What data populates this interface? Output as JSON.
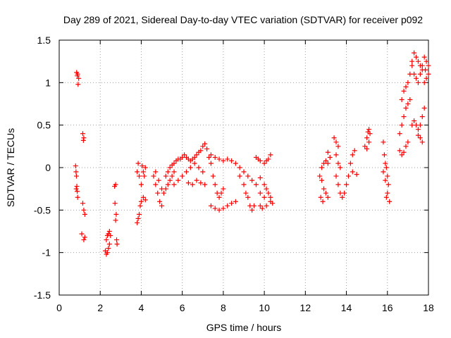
{
  "chart_data": {
    "type": "scatter",
    "title": "Day 289 of 2021, Sidereal Day-to-day VTEC variation (SDTVAR) for receiver p092",
    "xlabel": "GPS time / hours",
    "ylabel": "SDTVAR / TECUs",
    "xlim": [
      0,
      18
    ],
    "ylim": [
      -1.5,
      1.5
    ],
    "x_ticks": [
      0,
      2,
      4,
      6,
      8,
      10,
      12,
      14,
      16,
      18
    ],
    "x_tick_labels": [
      "0",
      "2",
      "4",
      "6",
      "8",
      "10",
      "12",
      "14",
      "16",
      "18"
    ],
    "y_ticks": [
      -1.5,
      -1,
      -0.5,
      0,
      0.5,
      1,
      1.5
    ],
    "y_tick_labels": [
      "-1.5",
      "-1",
      "-0.5",
      "0",
      "0.5",
      "1",
      "1.5"
    ],
    "grid": true,
    "marker": "+",
    "color": "#ff0000",
    "series": [
      {
        "name": "SDTVAR",
        "points": [
          [
            0.85,
            1.12
          ],
          [
            0.9,
            1.1
          ],
          [
            0.95,
            1.05
          ],
          [
            0.88,
            1.08
          ],
          [
            0.92,
            0.98
          ],
          [
            0.8,
            0.02
          ],
          [
            0.82,
            -0.05
          ],
          [
            0.84,
            -0.1
          ],
          [
            0.86,
            -0.22
          ],
          [
            0.88,
            -0.28
          ],
          [
            0.9,
            -0.35
          ],
          [
            0.83,
            -0.25
          ],
          [
            1.15,
            0.4
          ],
          [
            1.2,
            0.35
          ],
          [
            1.18,
            0.32
          ],
          [
            1.15,
            -0.42
          ],
          [
            1.2,
            -0.5
          ],
          [
            1.25,
            -0.55
          ],
          [
            1.1,
            -0.78
          ],
          [
            1.2,
            -0.85
          ],
          [
            1.25,
            -0.82
          ],
          [
            2.25,
            -0.98
          ],
          [
            2.3,
            -1.02
          ],
          [
            2.35,
            -1.0
          ],
          [
            2.4,
            -0.95
          ],
          [
            2.45,
            -0.9
          ],
          [
            2.3,
            -0.85
          ],
          [
            2.35,
            -0.8
          ],
          [
            2.4,
            -0.78
          ],
          [
            2.45,
            -0.75
          ],
          [
            2.5,
            -0.8
          ],
          [
            2.7,
            -0.22
          ],
          [
            2.75,
            -0.2
          ],
          [
            2.72,
            -0.42
          ],
          [
            2.78,
            -0.55
          ],
          [
            2.75,
            -0.62
          ],
          [
            2.8,
            -0.85
          ],
          [
            2.82,
            -0.9
          ],
          [
            3.8,
            -0.65
          ],
          [
            3.85,
            -0.6
          ],
          [
            3.9,
            -0.55
          ],
          [
            3.95,
            -0.45
          ],
          [
            4.0,
            -0.4
          ],
          [
            4.1,
            -0.35
          ],
          [
            4.2,
            -0.38
          ],
          [
            3.8,
            -0.05
          ],
          [
            3.9,
            -0.1
          ],
          [
            4.0,
            -0.2
          ],
          [
            4.1,
            -0.05
          ],
          [
            4.2,
            0.0
          ],
          [
            3.85,
            0.05
          ],
          [
            4.05,
            0.02
          ],
          [
            4.15,
            -0.1
          ],
          [
            4.6,
            -0.1
          ],
          [
            4.7,
            -0.2
          ],
          [
            4.8,
            -0.3
          ],
          [
            4.9,
            -0.4
          ],
          [
            5.0,
            -0.45
          ],
          [
            4.7,
            -0.05
          ],
          [
            4.85,
            -0.15
          ],
          [
            5.0,
            -0.25
          ],
          [
            5.1,
            -0.3
          ],
          [
            5.2,
            -0.25
          ],
          [
            5.3,
            -0.2
          ],
          [
            5.4,
            -0.15
          ],
          [
            5.5,
            -0.1
          ],
          [
            5.6,
            -0.05
          ],
          [
            5.2,
            -0.1
          ],
          [
            5.3,
            -0.05
          ],
          [
            5.4,
            0.0
          ],
          [
            5.5,
            0.03
          ],
          [
            5.6,
            0.05
          ],
          [
            5.7,
            0.08
          ],
          [
            5.8,
            0.1
          ],
          [
            5.9,
            0.1
          ],
          [
            6.0,
            0.12
          ],
          [
            6.1,
            0.15
          ],
          [
            6.2,
            0.12
          ],
          [
            6.3,
            0.1
          ],
          [
            6.4,
            0.08
          ],
          [
            6.5,
            0.1
          ],
          [
            6.6,
            0.12
          ],
          [
            6.7,
            0.15
          ],
          [
            6.8,
            0.18
          ],
          [
            6.9,
            0.2
          ],
          [
            7.0,
            0.25
          ],
          [
            7.1,
            0.28
          ],
          [
            7.2,
            0.22
          ],
          [
            7.3,
            0.12
          ],
          [
            7.4,
            0.05
          ],
          [
            5.6,
            -0.2
          ],
          [
            5.8,
            -0.15
          ],
          [
            6.0,
            -0.1
          ],
          [
            6.2,
            -0.05
          ],
          [
            6.4,
            0.0
          ],
          [
            6.6,
            0.05
          ],
          [
            6.8,
            0.0
          ],
          [
            7.0,
            -0.05
          ],
          [
            6.3,
            -0.18
          ],
          [
            6.5,
            -0.2
          ],
          [
            6.7,
            -0.15
          ],
          [
            6.9,
            -0.18
          ],
          [
            7.1,
            -0.2
          ],
          [
            7.5,
            -0.1
          ],
          [
            7.6,
            -0.2
          ],
          [
            7.7,
            -0.3
          ],
          [
            7.8,
            -0.35
          ],
          [
            7.9,
            -0.3
          ],
          [
            8.0,
            -0.25
          ],
          [
            7.4,
            0.15
          ],
          [
            7.6,
            0.12
          ],
          [
            7.8,
            0.1
          ],
          [
            8.0,
            0.08
          ],
          [
            8.2,
            0.1
          ],
          [
            8.4,
            0.08
          ],
          [
            8.6,
            0.05
          ],
          [
            8.8,
            0.0
          ],
          [
            7.4,
            -0.45
          ],
          [
            7.6,
            -0.48
          ],
          [
            7.8,
            -0.5
          ],
          [
            8.0,
            -0.48
          ],
          [
            8.2,
            -0.45
          ],
          [
            8.4,
            -0.42
          ],
          [
            8.6,
            -0.4
          ],
          [
            8.8,
            -0.1
          ],
          [
            9.0,
            -0.2
          ],
          [
            9.1,
            -0.3
          ],
          [
            9.2,
            -0.35
          ],
          [
            9.3,
            -0.45
          ],
          [
            9.4,
            -0.5
          ],
          [
            9.5,
            -0.45
          ],
          [
            9.0,
            -0.05
          ],
          [
            9.2,
            -0.1
          ],
          [
            9.4,
            -0.15
          ],
          [
            9.6,
            -0.2
          ],
          [
            9.8,
            -0.3
          ],
          [
            10.0,
            -0.35
          ],
          [
            9.6,
            0.12
          ],
          [
            9.7,
            0.1
          ],
          [
            9.8,
            0.08
          ],
          [
            10.0,
            0.05
          ],
          [
            10.1,
            0.08
          ],
          [
            10.2,
            0.1
          ],
          [
            10.3,
            0.15
          ],
          [
            9.8,
            -0.12
          ],
          [
            10.0,
            -0.2
          ],
          [
            10.1,
            -0.25
          ],
          [
            10.2,
            -0.3
          ],
          [
            10.3,
            -0.35
          ],
          [
            10.4,
            -0.42
          ],
          [
            9.8,
            -0.45
          ],
          [
            9.9,
            -0.48
          ],
          [
            10.1,
            -0.45
          ],
          [
            10.3,
            -0.4
          ],
          [
            12.7,
            -0.1
          ],
          [
            12.8,
            -0.15
          ],
          [
            12.9,
            -0.25
          ],
          [
            13.0,
            -0.3
          ],
          [
            13.1,
            -0.35
          ],
          [
            12.75,
            -0.35
          ],
          [
            12.85,
            -0.4
          ],
          [
            12.8,
            0.0
          ],
          [
            12.9,
            0.05
          ],
          [
            13.0,
            0.08
          ],
          [
            13.1,
            0.05
          ],
          [
            13.2,
            0.12
          ],
          [
            13.1,
            0.18
          ],
          [
            13.4,
            0.35
          ],
          [
            13.5,
            0.3
          ],
          [
            13.6,
            0.25
          ],
          [
            13.5,
            0.15
          ],
          [
            13.6,
            0.05
          ],
          [
            13.7,
            0.0
          ],
          [
            13.5,
            -0.1
          ],
          [
            13.6,
            -0.2
          ],
          [
            13.7,
            -0.3
          ],
          [
            13.8,
            -0.35
          ],
          [
            13.9,
            -0.3
          ],
          [
            14.0,
            -0.2
          ],
          [
            14.1,
            -0.1
          ],
          [
            14.2,
            0.05
          ],
          [
            14.3,
            0.15
          ],
          [
            14.4,
            0.2
          ],
          [
            14.3,
            -0.05
          ],
          [
            14.5,
            -0.08
          ],
          [
            14.9,
            0.25
          ],
          [
            15.0,
            0.35
          ],
          [
            15.05,
            0.42
          ],
          [
            15.1,
            0.45
          ],
          [
            15.0,
            0.22
          ],
          [
            15.1,
            0.3
          ],
          [
            15.15,
            0.4
          ],
          [
            15.8,
            0.3
          ],
          [
            15.85,
            0.15
          ],
          [
            15.9,
            0.05
          ],
          [
            15.95,
            0.0
          ],
          [
            16.0,
            -0.1
          ],
          [
            16.05,
            -0.2
          ],
          [
            15.8,
            -0.05
          ],
          [
            15.9,
            -0.15
          ],
          [
            16.0,
            -0.3
          ],
          [
            16.1,
            -0.4
          ],
          [
            15.95,
            -0.35
          ],
          [
            16.6,
            0.2
          ],
          [
            16.7,
            0.15
          ],
          [
            16.8,
            0.18
          ],
          [
            16.9,
            0.25
          ],
          [
            17.0,
            0.3
          ],
          [
            16.6,
            0.4
          ],
          [
            16.7,
            0.5
          ],
          [
            16.8,
            0.6
          ],
          [
            16.9,
            0.7
          ],
          [
            17.0,
            0.75
          ],
          [
            17.1,
            0.8
          ],
          [
            16.7,
            0.8
          ],
          [
            16.8,
            0.9
          ],
          [
            16.9,
            0.95
          ],
          [
            17.0,
            1.0
          ],
          [
            17.1,
            1.1
          ],
          [
            17.2,
            1.2
          ],
          [
            17.2,
            1.25
          ],
          [
            17.3,
            1.35
          ],
          [
            17.4,
            1.3
          ],
          [
            17.5,
            1.25
          ],
          [
            17.6,
            1.2
          ],
          [
            17.7,
            1.15
          ],
          [
            17.3,
            1.1
          ],
          [
            17.4,
            1.05
          ],
          [
            17.5,
            1.0
          ],
          [
            17.6,
            1.1
          ],
          [
            17.7,
            1.2
          ],
          [
            17.8,
            1.3
          ],
          [
            17.9,
            1.25
          ],
          [
            18.0,
            1.2
          ],
          [
            17.2,
            0.5
          ],
          [
            17.3,
            0.55
          ],
          [
            17.4,
            0.5
          ],
          [
            17.5,
            0.45
          ],
          [
            17.6,
            0.5
          ],
          [
            17.7,
            0.6
          ],
          [
            17.8,
            0.7
          ],
          [
            17.6,
            0.35
          ],
          [
            17.5,
            0.38
          ],
          [
            17.7,
            0.3
          ],
          [
            17.8,
            1.0
          ],
          [
            17.9,
            1.05
          ],
          [
            18.0,
            1.1
          ],
          [
            17.85,
            1.15
          ]
        ]
      }
    ]
  }
}
